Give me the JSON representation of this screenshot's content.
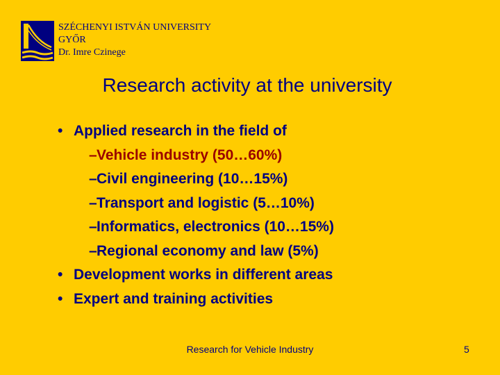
{
  "header": {
    "line1": "SZÉCHENYI ISTVÁN UNIVERSITY",
    "line2": "GYŐR",
    "line3": "Dr. Imre Czinege"
  },
  "title": "Research activity at the university",
  "bullet_glyph": "•",
  "dash_glyph": "–",
  "items": [
    {
      "text": "Applied research in the field of",
      "subitems": [
        "Vehicle industry (50…60%)",
        "Civil engineering (10…15%)",
        "Transport and logistic (5…10%)",
        "Informatics, electronics (10…15%)",
        "Regional economy and law (5%)"
      ]
    },
    {
      "text": "Development works in different areas"
    },
    {
      "text": "Expert and training activities"
    }
  ],
  "footer": {
    "text": "Research for Vehicle Industry",
    "page": "5"
  },
  "colors": {
    "background": "#FFCC00",
    "text": "#000080",
    "highlight": "#990000"
  }
}
